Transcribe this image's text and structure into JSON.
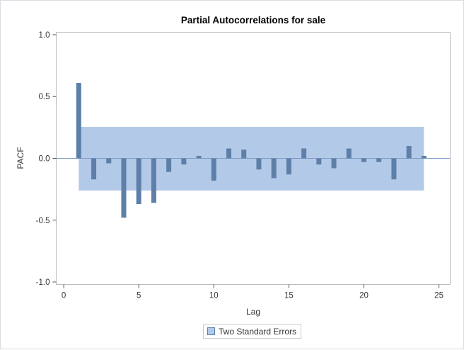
{
  "chart_data": {
    "type": "bar",
    "title": "Partial Autocorrelations for sale",
    "xlabel": "Lag",
    "ylabel": "PACF",
    "xlim": [
      -0.5,
      25.75
    ],
    "ylim": [
      -1.02,
      1.02
    ],
    "xticks": [
      0,
      5,
      10,
      15,
      20,
      25
    ],
    "xtick_labels": [
      "0",
      "5",
      "10",
      "15",
      "20",
      "25"
    ],
    "yticks": [
      -1.0,
      -0.5,
      0.0,
      0.5,
      1.0
    ],
    "ytick_labels": [
      "-1.0",
      "-0.5",
      "0.0",
      "0.5",
      "1.0"
    ],
    "lags": [
      1,
      2,
      3,
      4,
      5,
      6,
      7,
      8,
      9,
      10,
      11,
      12,
      13,
      14,
      15,
      16,
      17,
      18,
      19,
      20,
      21,
      22,
      23,
      24
    ],
    "values": [
      0.61,
      -0.17,
      -0.04,
      -0.48,
      -0.37,
      -0.36,
      -0.11,
      -0.05,
      0.02,
      -0.18,
      0.08,
      0.07,
      -0.09,
      -0.16,
      -0.13,
      0.08,
      -0.05,
      -0.08,
      0.08,
      -0.03,
      -0.03,
      -0.17,
      0.1,
      0.02
    ],
    "confidence_band": {
      "x_start": 1,
      "x_end": 24,
      "upper": 0.255,
      "lower": -0.26
    },
    "legend": [
      {
        "label": "Two Standard Errors"
      }
    ],
    "grid": false,
    "colors": {
      "bar": "#5d7fa8",
      "band": "#b3c9e8",
      "zero_line": "#7f9cc4",
      "legend_swatch_fill": "#b3c9e8",
      "legend_swatch_border": "#5d7fa8"
    }
  }
}
